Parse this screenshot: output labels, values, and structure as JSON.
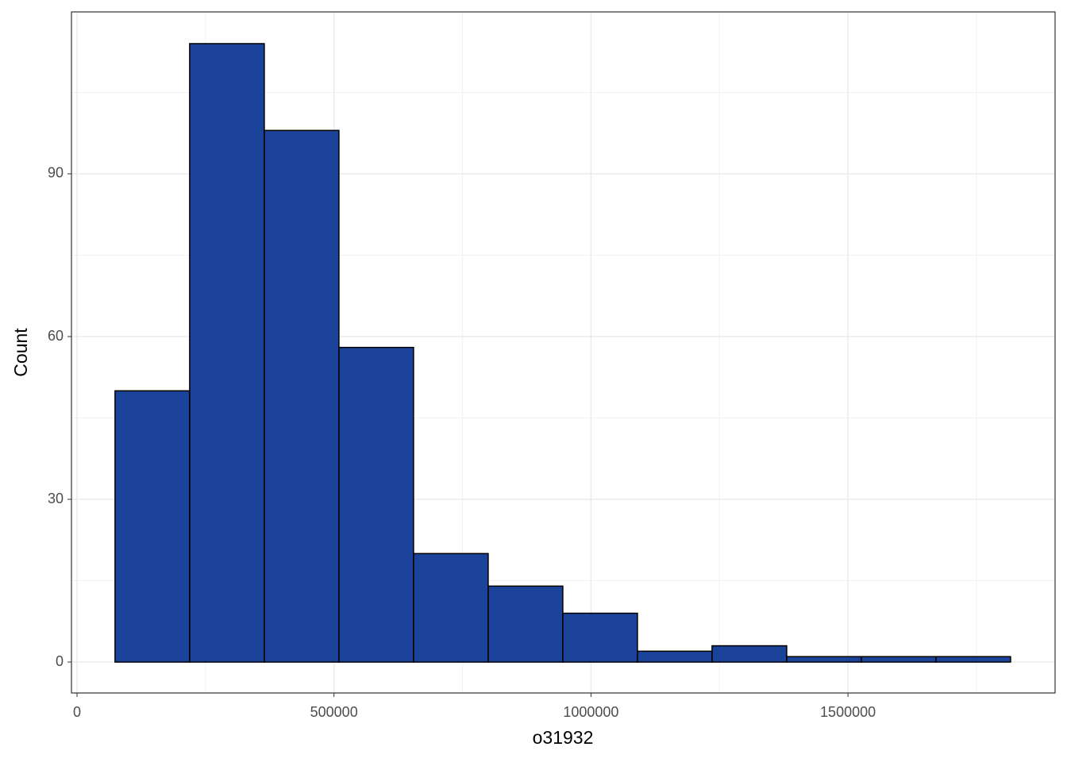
{
  "chart_data": {
    "type": "histogram",
    "x_label": "o31932",
    "y_label": "Count",
    "bins": [
      74000,
      219200,
      364400,
      509600,
      654800,
      800000,
      945200,
      1090400,
      1235600,
      1380800,
      1526000,
      1671200,
      1816400
    ],
    "values": [
      50,
      114,
      98,
      58,
      20,
      14,
      9,
      2,
      3,
      1,
      1,
      1
    ],
    "color": "#1a4399",
    "edge_color": "#000000",
    "xlim": [
      -10800,
      1903000
    ],
    "ylim": [
      -5.7,
      119.85
    ],
    "xticks": [
      0,
      500000,
      1000000,
      1500000
    ],
    "yticks": [
      0,
      30,
      60,
      90
    ],
    "grid": true
  }
}
